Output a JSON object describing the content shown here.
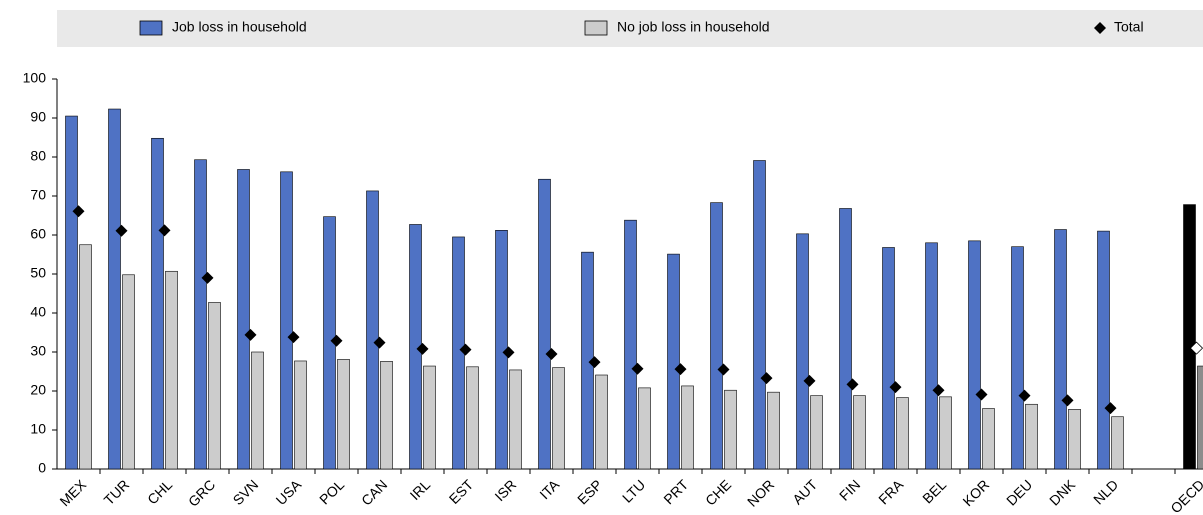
{
  "chart_data": {
    "type": "bar",
    "categories": [
      "MEX",
      "TUR",
      "CHL",
      "GRC",
      "SVN",
      "USA",
      "POL",
      "CAN",
      "IRL",
      "EST",
      "ISR",
      "ITA",
      "ESP",
      "LTU",
      "PRT",
      "CHE",
      "NOR",
      "AUT",
      "FIN",
      "FRA",
      "BEL",
      "KOR",
      "DEU",
      "DNK",
      "NLD",
      null,
      "OECD"
    ],
    "series": [
      {
        "name": "Job loss in household",
        "color": "#4f72c4",
        "highlight_color": "#000000",
        "style": "bar",
        "values": [
          90.5,
          92.3,
          84.8,
          79.3,
          76.8,
          76.2,
          64.7,
          71.3,
          62.7,
          59.5,
          61.2,
          74.3,
          55.6,
          63.8,
          55.1,
          68.3,
          79.1,
          60.3,
          66.8,
          56.8,
          58,
          58.5,
          57,
          61.4,
          61,
          null,
          67.8
        ]
      },
      {
        "name": "No job loss in household",
        "color": "#cccccc",
        "highlight_color": "#8c8c8c",
        "style": "bar",
        "values": [
          57.5,
          49.8,
          50.7,
          42.7,
          30,
          27.7,
          28.1,
          27.6,
          26.4,
          26.2,
          25.4,
          26,
          24.1,
          20.8,
          21.3,
          20.2,
          19.7,
          18.8,
          18.8,
          18.3,
          18.5,
          15.5,
          16.6,
          15.3,
          13.4,
          null,
          26.4
        ]
      },
      {
        "name": "Total",
        "color": "#000000",
        "highlight_color": "#ffffff",
        "style": "diamond",
        "values": [
          66.1,
          61.1,
          61.2,
          49,
          34.4,
          33.8,
          32.9,
          32.4,
          30.8,
          30.6,
          29.9,
          29.5,
          27.4,
          25.7,
          25.6,
          25.5,
          23.3,
          22.6,
          21.7,
          21,
          20.2,
          19.1,
          18.8,
          17.6,
          15.6,
          null,
          31
        ]
      }
    ],
    "highlight_category": "OECD",
    "ylim": [
      0,
      100
    ],
    "yticks": [
      0,
      10,
      20,
      30,
      40,
      50,
      60,
      70,
      80,
      90,
      100
    ],
    "grid": false,
    "legend": "top"
  }
}
